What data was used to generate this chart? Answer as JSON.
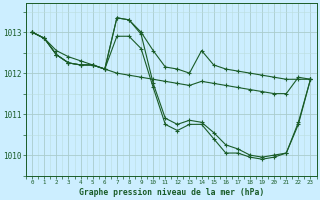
{
  "title": "Graphe pression niveau de la mer (hPa)",
  "bg_color": "#cceeff",
  "grid_color_major": "#aacccc",
  "grid_color_minor": "#bbdddd",
  "line_color": "#1a5c28",
  "axis_color": "#1a5c28",
  "xlim": [
    -0.5,
    23.5
  ],
  "ylim": [
    1009.5,
    1013.7
  ],
  "yticks": [
    1010,
    1011,
    1012,
    1013
  ],
  "xticks": [
    0,
    1,
    2,
    3,
    4,
    5,
    6,
    7,
    8,
    9,
    10,
    11,
    12,
    13,
    14,
    15,
    16,
    17,
    18,
    19,
    20,
    21,
    22,
    23
  ],
  "series1": [
    1013.0,
    1012.85,
    1012.55,
    1012.4,
    1012.3,
    1012.2,
    1012.1,
    1012.0,
    1011.95,
    1011.9,
    1011.85,
    1011.8,
    1011.75,
    1011.7,
    1011.8,
    1011.75,
    1011.7,
    1011.65,
    1011.6,
    1011.55,
    1011.5,
    1011.5,
    1011.9,
    1011.85
  ],
  "series2": [
    1013.0,
    1012.85,
    1012.45,
    1012.25,
    1012.2,
    1012.2,
    1012.1,
    1013.35,
    1013.3,
    1013.0,
    1012.55,
    1012.15,
    1012.1,
    1012.0,
    1012.55,
    1012.2,
    1012.1,
    1012.05,
    1012.0,
    1011.95,
    1011.9,
    1011.85,
    1011.85,
    1011.85
  ],
  "series3": [
    1013.0,
    1012.85,
    1012.45,
    1012.25,
    1012.2,
    1012.2,
    1012.1,
    1013.35,
    1013.3,
    1012.95,
    1011.75,
    1010.9,
    1010.75,
    1010.85,
    1010.8,
    1010.55,
    1010.25,
    1010.15,
    1010.0,
    1009.95,
    1010.0,
    1010.05,
    1010.8,
    1011.85
  ],
  "series4": [
    1013.0,
    1012.85,
    1012.45,
    1012.25,
    1012.2,
    1012.2,
    1012.1,
    1012.9,
    1012.9,
    1012.6,
    1011.65,
    1010.75,
    1010.6,
    1010.75,
    1010.75,
    1010.4,
    1010.05,
    1010.05,
    1009.95,
    1009.9,
    1009.95,
    1010.05,
    1010.75,
    1011.85
  ]
}
